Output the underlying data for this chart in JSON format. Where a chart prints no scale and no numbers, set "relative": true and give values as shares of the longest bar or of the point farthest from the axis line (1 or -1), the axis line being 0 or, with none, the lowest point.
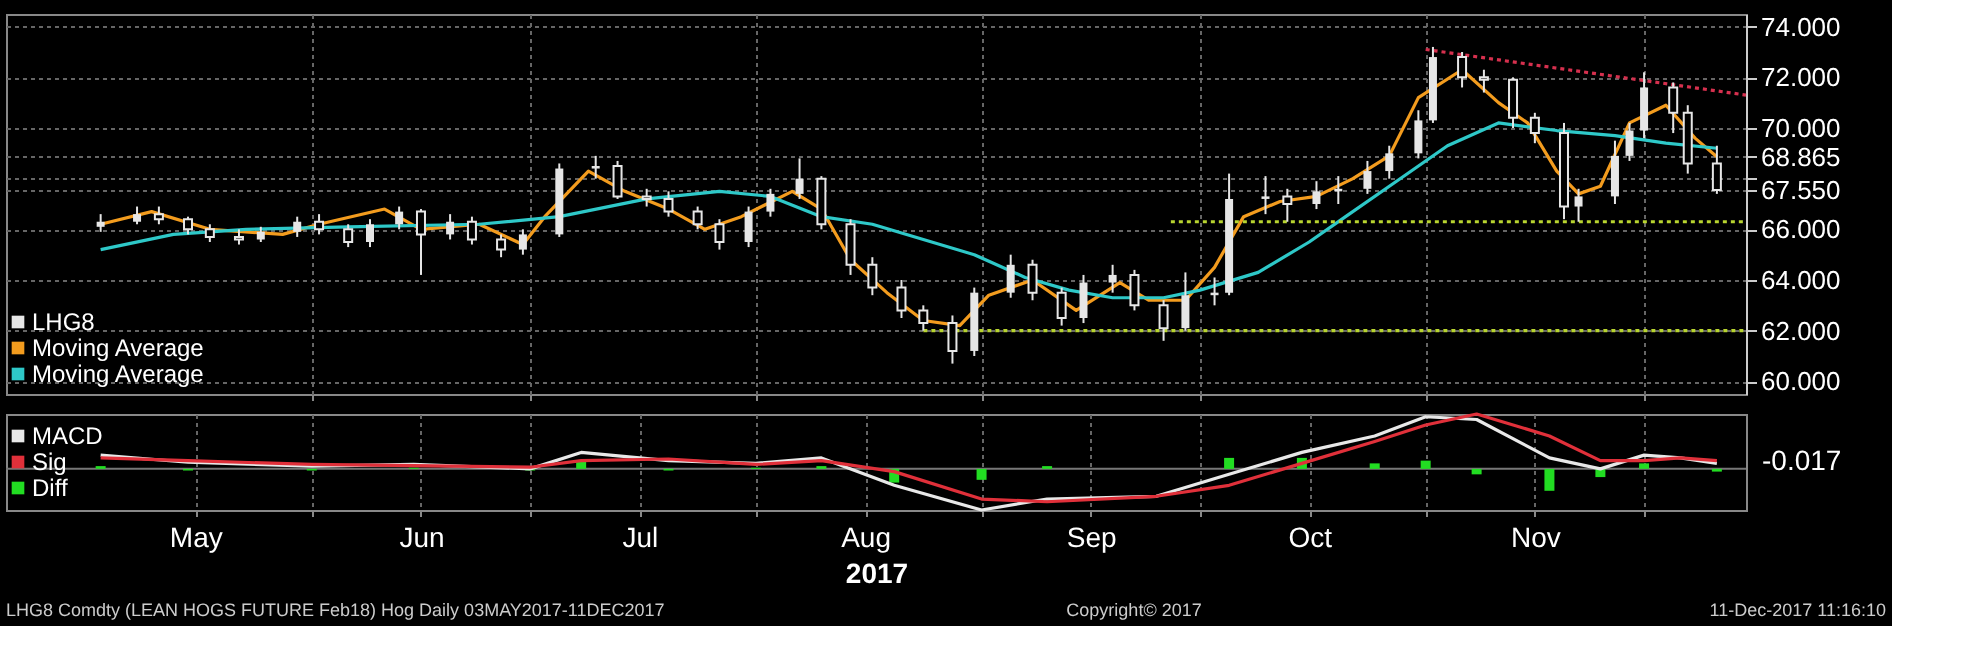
{
  "chart_data": [
    {
      "type": "candlestick",
      "xlim": [
        "2017-04-20",
        "2017-12-15"
      ],
      "ylim": [
        59.5,
        74.5
      ],
      "yticks": [
        {
          "value": 60,
          "label": "60.000"
        },
        {
          "value": 62,
          "label": "62.000"
        },
        {
          "value": 64,
          "label": "64.000"
        },
        {
          "value": 66,
          "label": "66.000"
        },
        {
          "value": 67.55,
          "label": "67.550"
        },
        {
          "value": 68,
          "label": null
        },
        {
          "value": 68.865,
          "label": "68.865"
        },
        {
          "value": 70,
          "label": "70.000"
        },
        {
          "value": 72,
          "label": "72.000"
        },
        {
          "value": 74,
          "label": "74.000"
        }
      ],
      "xticks": [
        {
          "value": "2017-06-01",
          "label": null
        },
        {
          "value": "2017-07-01",
          "label": null
        },
        {
          "value": "2017-08-01",
          "label": null
        },
        {
          "value": "2017-09-01",
          "label": null
        },
        {
          "value": "2017-10-01",
          "label": null
        },
        {
          "value": "2017-11-01",
          "label": null
        },
        {
          "value": "2017-12-01",
          "label": null
        }
      ],
      "tick_labels": "y",
      "grid": true,
      "legend": "bottom left",
      "series": [
        {
          "name": "LHG8",
          "type": "candlestick",
          "color": "#e6e6e6",
          "x": [
            "2017-05-03",
            "2017-05-08",
            "2017-05-11",
            "2017-05-15",
            "2017-05-18",
            "2017-05-22",
            "2017-05-25",
            "2017-05-30",
            "2017-06-02",
            "2017-06-06",
            "2017-06-09",
            "2017-06-13",
            "2017-06-16",
            "2017-06-20",
            "2017-06-23",
            "2017-06-27",
            "2017-06-30",
            "2017-07-05",
            "2017-07-10",
            "2017-07-13",
            "2017-07-17",
            "2017-07-20",
            "2017-07-24",
            "2017-07-27",
            "2017-07-31",
            "2017-08-03",
            "2017-08-07",
            "2017-08-10",
            "2017-08-14",
            "2017-08-17",
            "2017-08-21",
            "2017-08-24",
            "2017-08-28",
            "2017-08-31",
            "2017-09-05",
            "2017-09-08",
            "2017-09-12",
            "2017-09-15",
            "2017-09-19",
            "2017-09-22",
            "2017-09-26",
            "2017-09-29",
            "2017-10-03",
            "2017-10-05",
            "2017-10-10",
            "2017-10-13",
            "2017-10-17",
            "2017-10-20",
            "2017-10-24",
            "2017-10-27",
            "2017-10-31",
            "2017-11-02",
            "2017-11-06",
            "2017-11-09",
            "2017-11-13",
            "2017-11-16",
            "2017-11-20",
            "2017-11-22",
            "2017-11-27",
            "2017-11-29",
            "2017-12-01",
            "2017-12-05",
            "2017-12-07",
            "2017-12-11"
          ],
          "ohlc": [
            [
              66.1,
              66.6,
              65.9,
              66.3
            ],
            [
              66.3,
              66.9,
              66.2,
              66.6
            ],
            [
              66.6,
              66.9,
              66.2,
              66.4
            ],
            [
              66.4,
              66.5,
              65.8,
              66.0
            ],
            [
              66.0,
              66.2,
              65.5,
              65.7
            ],
            [
              65.7,
              66.0,
              65.4,
              65.6
            ],
            [
              65.6,
              66.1,
              65.5,
              65.9
            ],
            [
              65.9,
              66.5,
              65.7,
              66.3
            ],
            [
              66.3,
              66.6,
              65.8,
              66.0
            ],
            [
              66.0,
              66.2,
              65.3,
              65.5
            ],
            [
              65.5,
              66.4,
              65.3,
              66.2
            ],
            [
              66.2,
              66.9,
              66.0,
              66.7
            ],
            [
              66.7,
              66.8,
              64.2,
              65.8
            ],
            [
              65.8,
              66.6,
              65.6,
              66.3
            ],
            [
              66.3,
              66.5,
              65.4,
              65.6
            ],
            [
              65.6,
              65.8,
              64.9,
              65.2
            ],
            [
              65.2,
              66.0,
              65.0,
              65.8
            ],
            [
              65.8,
              68.6,
              65.7,
              68.4
            ],
            [
              68.4,
              68.9,
              68.0,
              68.5
            ],
            [
              68.5,
              68.7,
              67.2,
              67.3
            ],
            [
              67.3,
              67.6,
              66.9,
              67.2
            ],
            [
              67.2,
              67.5,
              66.5,
              66.7
            ],
            [
              66.7,
              66.9,
              66.0,
              66.2
            ],
            [
              66.2,
              66.4,
              65.2,
              65.5
            ],
            [
              65.5,
              66.9,
              65.3,
              66.7
            ],
            [
              66.7,
              67.6,
              66.5,
              67.4
            ],
            [
              67.4,
              68.8,
              67.2,
              68.0
            ],
            [
              68.0,
              68.1,
              66.0,
              66.2
            ],
            [
              66.2,
              66.4,
              64.2,
              64.6
            ],
            [
              64.6,
              64.9,
              63.4,
              63.7
            ],
            [
              63.7,
              64.0,
              62.5,
              62.8
            ],
            [
              62.8,
              63.0,
              62.0,
              62.3
            ],
            [
              62.3,
              62.6,
              60.7,
              61.2
            ],
            [
              61.2,
              63.7,
              61.0,
              63.5
            ],
            [
              63.5,
              65.0,
              63.3,
              64.6
            ],
            [
              64.6,
              64.8,
              63.2,
              63.5
            ],
            [
              63.5,
              63.7,
              62.2,
              62.5
            ],
            [
              62.5,
              64.2,
              62.3,
              63.9
            ],
            [
              63.9,
              64.6,
              63.5,
              64.2
            ],
            [
              64.2,
              64.4,
              62.8,
              63.0
            ],
            [
              63.0,
              63.2,
              61.6,
              62.1
            ],
            [
              62.1,
              64.3,
              62.0,
              63.4
            ],
            [
              63.4,
              64.1,
              63.0,
              63.5
            ],
            [
              63.5,
              68.2,
              63.4,
              67.2
            ],
            [
              67.2,
              68.1,
              66.6,
              67.3
            ],
            [
              67.3,
              67.6,
              66.3,
              67.0
            ],
            [
              67.0,
              67.9,
              66.8,
              67.5
            ],
            [
              67.5,
              68.1,
              67.0,
              67.6
            ],
            [
              67.6,
              68.7,
              67.4,
              68.3
            ],
            [
              68.3,
              69.3,
              68.0,
              69.0
            ],
            [
              69.0,
              70.7,
              68.8,
              70.3
            ],
            [
              70.3,
              73.2,
              70.2,
              72.8
            ],
            [
              72.8,
              73.0,
              71.6,
              72.0
            ],
            [
              72.0,
              72.3,
              71.4,
              71.9
            ],
            [
              71.9,
              72.0,
              70.0,
              70.4
            ],
            [
              70.4,
              70.6,
              69.4,
              69.8
            ],
            [
              69.8,
              70.2,
              66.4,
              66.9
            ],
            [
              66.9,
              67.6,
              66.3,
              67.3
            ],
            [
              67.3,
              69.5,
              67.0,
              68.9
            ],
            [
              68.9,
              70.2,
              68.7,
              69.9
            ],
            [
              69.9,
              72.2,
              69.6,
              71.6
            ],
            [
              71.6,
              71.8,
              69.8,
              70.6
            ],
            [
              70.6,
              70.9,
              68.2,
              68.6
            ],
            [
              68.6,
              69.3,
              67.4,
              67.55
            ]
          ]
        },
        {
          "name": "Moving Average",
          "type": "line",
          "color": "#f39c1e",
          "x": [
            "2017-05-03",
            "2017-05-10",
            "2017-05-18",
            "2017-05-28",
            "2017-06-02",
            "2017-06-11",
            "2017-06-16",
            "2017-06-24",
            "2017-06-30",
            "2017-07-03",
            "2017-07-09",
            "2017-07-14",
            "2017-07-20",
            "2017-07-25",
            "2017-07-30",
            "2017-08-06",
            "2017-08-10",
            "2017-08-14",
            "2017-08-19",
            "2017-08-24",
            "2017-08-29",
            "2017-09-02",
            "2017-09-08",
            "2017-09-14",
            "2017-09-20",
            "2017-09-24",
            "2017-09-29",
            "2017-10-03",
            "2017-10-07",
            "2017-10-12",
            "2017-10-17",
            "2017-10-22",
            "2017-10-27",
            "2017-10-31",
            "2017-11-06",
            "2017-11-11",
            "2017-11-15",
            "2017-11-19",
            "2017-11-22",
            "2017-11-25",
            "2017-11-29",
            "2017-12-04",
            "2017-12-08",
            "2017-12-11"
          ],
          "values": [
            66.2,
            66.7,
            66.0,
            65.8,
            66.2,
            66.8,
            66.0,
            66.2,
            65.4,
            66.5,
            68.3,
            67.5,
            66.8,
            66.0,
            66.5,
            67.5,
            66.8,
            64.8,
            63.5,
            62.4,
            62.2,
            63.4,
            64.0,
            62.8,
            63.9,
            63.2,
            63.2,
            64.5,
            66.5,
            67.1,
            67.3,
            68.0,
            68.9,
            71.2,
            72.3,
            71.0,
            70.2,
            68.3,
            67.4,
            67.7,
            70.2,
            70.9,
            69.6,
            68.865
          ]
        },
        {
          "name": "Moving Average",
          "type": "line",
          "color": "#2ec8c8",
          "x": [
            "2017-05-03",
            "2017-05-13",
            "2017-05-23",
            "2017-06-06",
            "2017-06-24",
            "2017-07-05",
            "2017-07-17",
            "2017-07-27",
            "2017-08-03",
            "2017-08-10",
            "2017-08-17",
            "2017-08-24",
            "2017-08-31",
            "2017-09-07",
            "2017-09-13",
            "2017-09-19",
            "2017-09-26",
            "2017-10-01",
            "2017-10-09",
            "2017-10-16",
            "2017-10-21",
            "2017-10-28",
            "2017-11-04",
            "2017-11-11",
            "2017-11-19",
            "2017-11-27",
            "2017-12-04",
            "2017-12-11"
          ],
          "values": [
            65.2,
            65.8,
            66.0,
            66.1,
            66.2,
            66.5,
            67.2,
            67.5,
            67.3,
            66.5,
            66.2,
            65.6,
            65.0,
            64.1,
            63.6,
            63.3,
            63.3,
            63.6,
            64.3,
            65.5,
            66.5,
            67.9,
            69.3,
            70.2,
            69.9,
            69.7,
            69.4,
            69.2
          ]
        },
        {
          "type": "line",
          "color": "#d6304e",
          "line_style": "dotted",
          "x": [
            "2017-11-01",
            "2017-12-15"
          ],
          "values": [
            73.1,
            71.3
          ]
        },
        {
          "type": "line",
          "color": "#b8d430",
          "line_style": "dotted",
          "x": [
            "2017-09-27",
            "2017-12-15"
          ],
          "values": [
            66.3,
            66.3
          ]
        },
        {
          "type": "line",
          "color": "#b8d430",
          "line_style": "dotted",
          "x": [
            "2017-08-24",
            "2017-12-15"
          ],
          "values": [
            62.0,
            62.0
          ]
        }
      ]
    },
    {
      "type": "line",
      "relative": true,
      "xlim": [
        "2017-04-20",
        "2017-12-15"
      ],
      "xlabel": "2017",
      "xticks": [
        {
          "value": "2017-05-16",
          "label": "May"
        },
        {
          "value": "2017-06-01",
          "label": null
        },
        {
          "value": "2017-06-16",
          "label": "Jun"
        },
        {
          "value": "2017-07-01",
          "label": null
        },
        {
          "value": "2017-07-16",
          "label": "Jul"
        },
        {
          "value": "2017-08-01",
          "label": null
        },
        {
          "value": "2017-08-16",
          "label": "Aug"
        },
        {
          "value": "2017-09-01",
          "label": null
        },
        {
          "value": "2017-09-16",
          "label": "Sep"
        },
        {
          "value": "2017-10-01",
          "label": null
        },
        {
          "value": "2017-10-16",
          "label": "Oct"
        },
        {
          "value": "2017-11-01",
          "label": null
        },
        {
          "value": "2017-11-16",
          "label": "Nov"
        },
        {
          "value": "2017-12-01",
          "label": null
        }
      ],
      "tick_labels": "x",
      "grid": "x",
      "legend": "left",
      "annotations": [
        "-0.017",
        "LHG8 Comdty (LEAN HOGS FUTURE  Feb18) Hog  Daily 03MAY2017-11DEC2017",
        "Copyright© 2017",
        "11-Dec-2017 11:16:10"
      ],
      "x": [
        "2017-05-03",
        "2017-05-15",
        "2017-06-01",
        "2017-06-15",
        "2017-07-01",
        "2017-07-08",
        "2017-07-20",
        "2017-08-01",
        "2017-08-10",
        "2017-08-20",
        "2017-09-01",
        "2017-09-10",
        "2017-09-25",
        "2017-10-05",
        "2017-10-15",
        "2017-10-25",
        "2017-11-01",
        "2017-11-08",
        "2017-11-18",
        "2017-11-25",
        "2017-12-01",
        "2017-12-06",
        "2017-12-11"
      ],
      "series": [
        {
          "name": "MACD",
          "type": "line",
          "color": "#e8e8e8",
          "values": [
            0.25,
            0.12,
            0.05,
            0.08,
            0.0,
            0.3,
            0.15,
            0.1,
            0.2,
            -0.3,
            -0.75,
            -0.55,
            -0.5,
            -0.1,
            0.3,
            0.6,
            0.95,
            0.9,
            0.2,
            0.0,
            0.25,
            0.2,
            0.1
          ]
        },
        {
          "name": "Sig",
          "type": "line",
          "color": "#e0303a",
          "values": [
            0.2,
            0.15,
            0.08,
            0.06,
            0.03,
            0.15,
            0.18,
            0.08,
            0.15,
            -0.05,
            -0.55,
            -0.6,
            -0.5,
            -0.3,
            0.1,
            0.5,
            0.8,
            1.0,
            0.6,
            0.15,
            0.15,
            0.2,
            0.15
          ]
        },
        {
          "name": "Diff",
          "type": "bar",
          "color": "#22dd22",
          "values": [
            0.05,
            -0.03,
            -0.03,
            0.02,
            -0.03,
            0.15,
            -0.03,
            0.02,
            0.05,
            -0.25,
            -0.2,
            0.05,
            0.0,
            0.2,
            0.2,
            0.1,
            0.15,
            -0.1,
            -0.4,
            -0.15,
            0.1,
            0.0,
            -0.05
          ]
        }
      ]
    }
  ]
}
